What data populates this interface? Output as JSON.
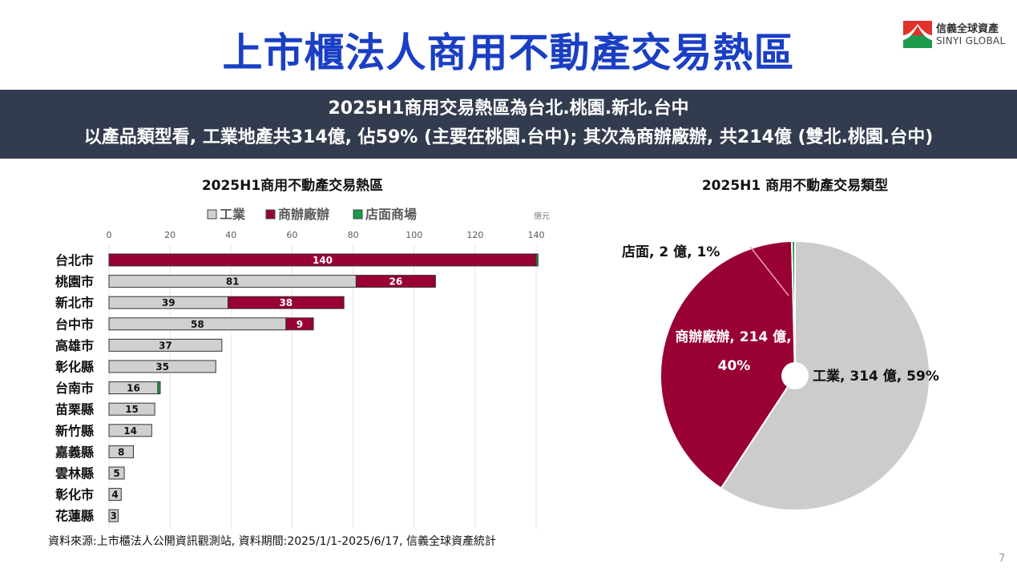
{
  "header": {
    "title": "上市櫃法人商用不動產交易熱區",
    "logo_cn": "信義全球資產",
    "logo_en": "SINYI GLOBAL"
  },
  "banner": {
    "line1": "2025H1商用交易熱區為台北.桃園.新北.台中",
    "line2": "以產品類型看, 工業地產共314億, 佔59% (主要在桃園.台中); 其次為商辦廠辦, 共214億 (雙北.桃園.台中)"
  },
  "colors": {
    "industrial": "#d0d0d0",
    "office": "#990033",
    "retail": "#1a9a4a",
    "title_blue": "#1a3fc4",
    "banner_bg": "#333c4e"
  },
  "chart_data": [
    {
      "type": "bar",
      "orientation": "horizontal",
      "stacked": true,
      "title": "2025H1商用不動產交易熱區",
      "unit_label": "億元",
      "xlim": [
        0,
        140
      ],
      "xticks": [
        0,
        20,
        40,
        60,
        80,
        100,
        120,
        140
      ],
      "grid": true,
      "legend_position": "top",
      "categories": [
        "台北市",
        "桃園市",
        "新北市",
        "台中市",
        "高雄市",
        "彰化縣",
        "台南市",
        "苗栗縣",
        "新竹縣",
        "嘉義縣",
        "雲林縣",
        "彰化市",
        "花蓮縣"
      ],
      "series": [
        {
          "name": "工業",
          "color": "#d0d0d0",
          "values": [
            0,
            81,
            39,
            58,
            37,
            35,
            16,
            15,
            14,
            8,
            5,
            4,
            3
          ],
          "labels": [
            "",
            "81",
            "39",
            "58",
            "37",
            "35",
            "16",
            "15",
            "14",
            "8",
            "5",
            "4",
            "3"
          ]
        },
        {
          "name": "商辦廠辦",
          "color": "#990033",
          "values": [
            140,
            26,
            38,
            9,
            0,
            0,
            0,
            0,
            0,
            0,
            0,
            0,
            0
          ],
          "labels": [
            "140",
            "26",
            "38",
            "9",
            "",
            "",
            "",
            "",
            "",
            "",
            "",
            "",
            ""
          ]
        },
        {
          "name": "店面商場",
          "color": "#1a9a4a",
          "values": [
            0.6,
            0,
            0,
            0,
            0,
            0,
            0.8,
            0,
            0,
            0,
            0,
            0,
            0
          ],
          "labels": [
            "",
            "",
            "",
            "",
            "",
            "",
            "",
            "",
            "",
            "",
            "",
            "",
            ""
          ]
        }
      ]
    },
    {
      "type": "pie",
      "title": "2025H1 商用不動產交易類型",
      "slices": [
        {
          "name": "工業",
          "value": 314,
          "percent": 59,
          "color": "#cccccc",
          "label": "工業, 314 億, 59%"
        },
        {
          "name": "商辦廠辦",
          "value": 214,
          "percent": 40,
          "color": "#990033",
          "label_line1": "商辦廠辦, 214 億,",
          "label_line2": "40%"
        },
        {
          "name": "店面",
          "value": 2,
          "percent": 1,
          "color": "#1a9a4a",
          "label": "店面, 2 億, 1%"
        }
      ]
    }
  ],
  "footer": {
    "source": "資料來源:上市櫃法人公開資訊觀測站, 資料期間:2025/1/1-2025/6/17, 信義全球資產統計",
    "page": "7"
  }
}
